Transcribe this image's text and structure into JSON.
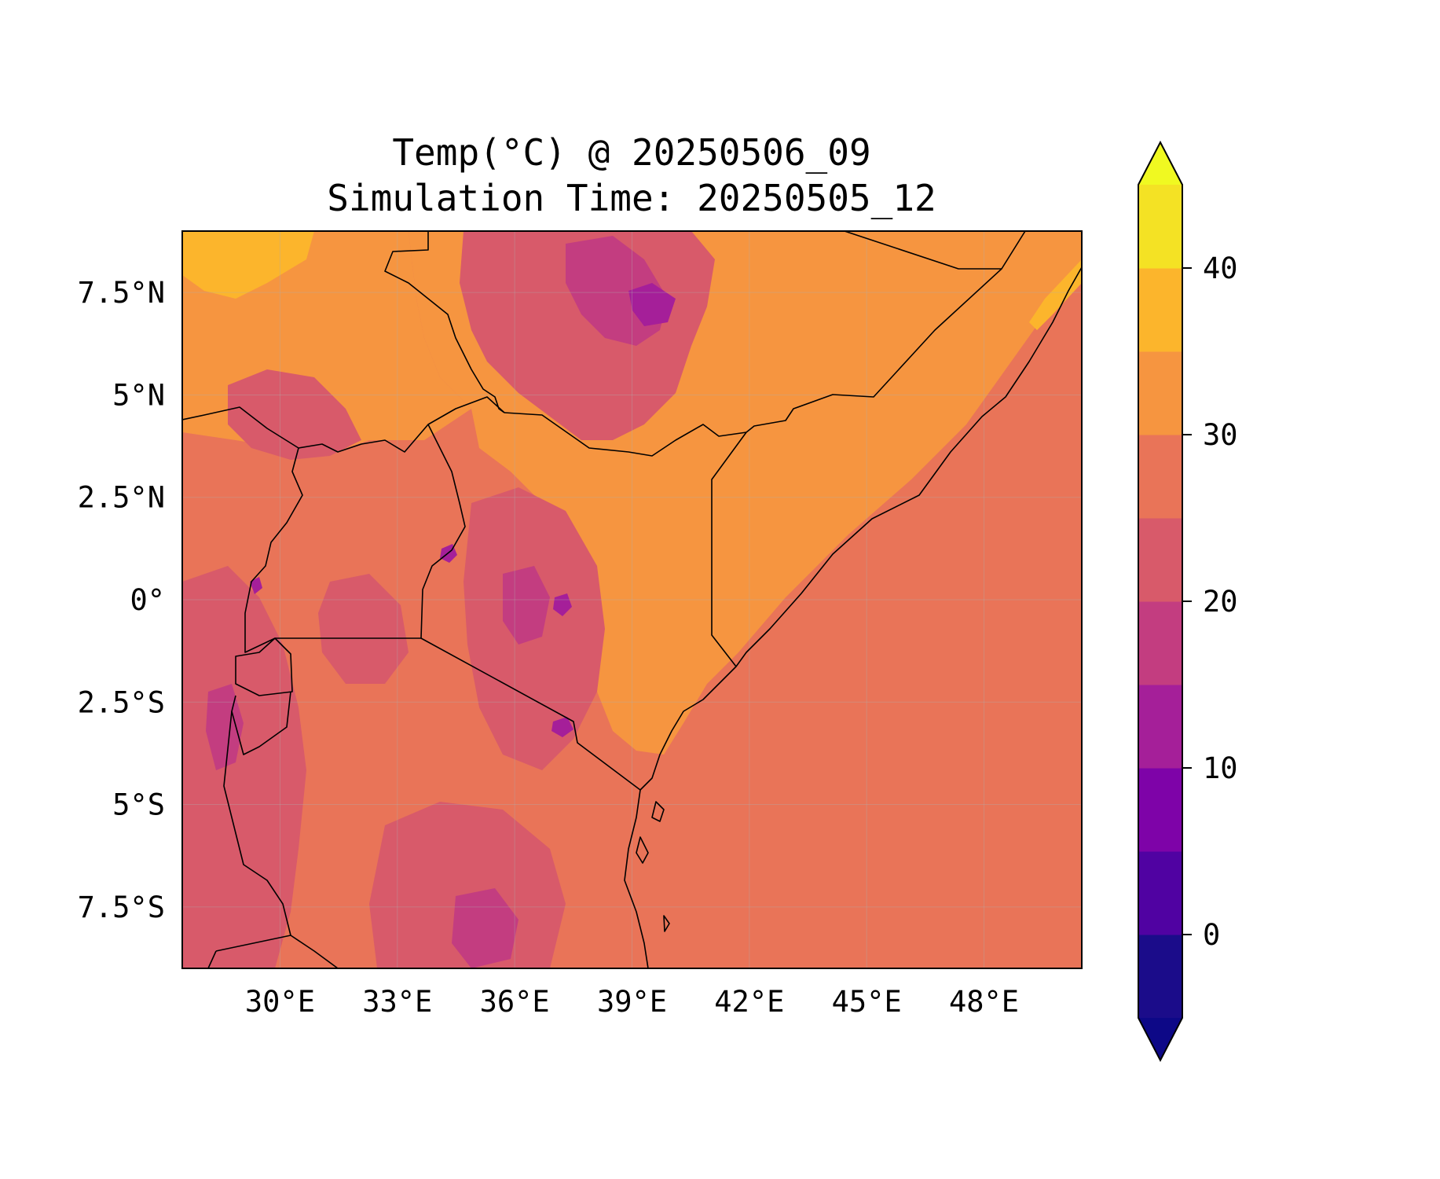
{
  "chart_data": {
    "type": "heatmap",
    "title": "Temp(°C) @ 20250506_09",
    "subtitle": "Simulation Time: 20250505_12",
    "xlabel": "",
    "ylabel": "",
    "lon_range": [
      27.5,
      50.5
    ],
    "lat_range": [
      -9,
      9
    ],
    "x_ticks": [
      {
        "value": 30,
        "label": "30°E"
      },
      {
        "value": 33,
        "label": "33°E"
      },
      {
        "value": 36,
        "label": "36°E"
      },
      {
        "value": 39,
        "label": "39°E"
      },
      {
        "value": 42,
        "label": "42°E"
      },
      {
        "value": 45,
        "label": "45°E"
      },
      {
        "value": 48,
        "label": "48°E"
      }
    ],
    "y_ticks": [
      {
        "value": 7.5,
        "label": "7.5°N"
      },
      {
        "value": 5,
        "label": "5°N"
      },
      {
        "value": 2.5,
        "label": "2.5°N"
      },
      {
        "value": 0,
        "label": "0°"
      },
      {
        "value": -2.5,
        "label": "2.5°S"
      },
      {
        "value": -5,
        "label": "5°S"
      },
      {
        "value": -7.5,
        "label": "7.5°S"
      }
    ],
    "grid": true,
    "colorbar": {
      "placement": "right",
      "extend": "both",
      "range": [
        -5,
        45
      ],
      "step": 5,
      "ticks": [
        {
          "value": 0,
          "label": "0"
        },
        {
          "value": 10,
          "label": "10"
        },
        {
          "value": 20,
          "label": "20"
        },
        {
          "value": 30,
          "label": "30"
        },
        {
          "value": 40,
          "label": "40"
        }
      ],
      "colors": [
        "#1b0c8a",
        "#5002a2",
        "#7e03a8",
        "#a51f99",
        "#c33d80",
        "#d85a6a",
        "#e97458",
        "#f69540",
        "#fcb52c",
        "#f4e224"
      ],
      "under_color": "#0d0887",
      "over_color": "#f0f921"
    },
    "ocean_temp": 27.5
  }
}
